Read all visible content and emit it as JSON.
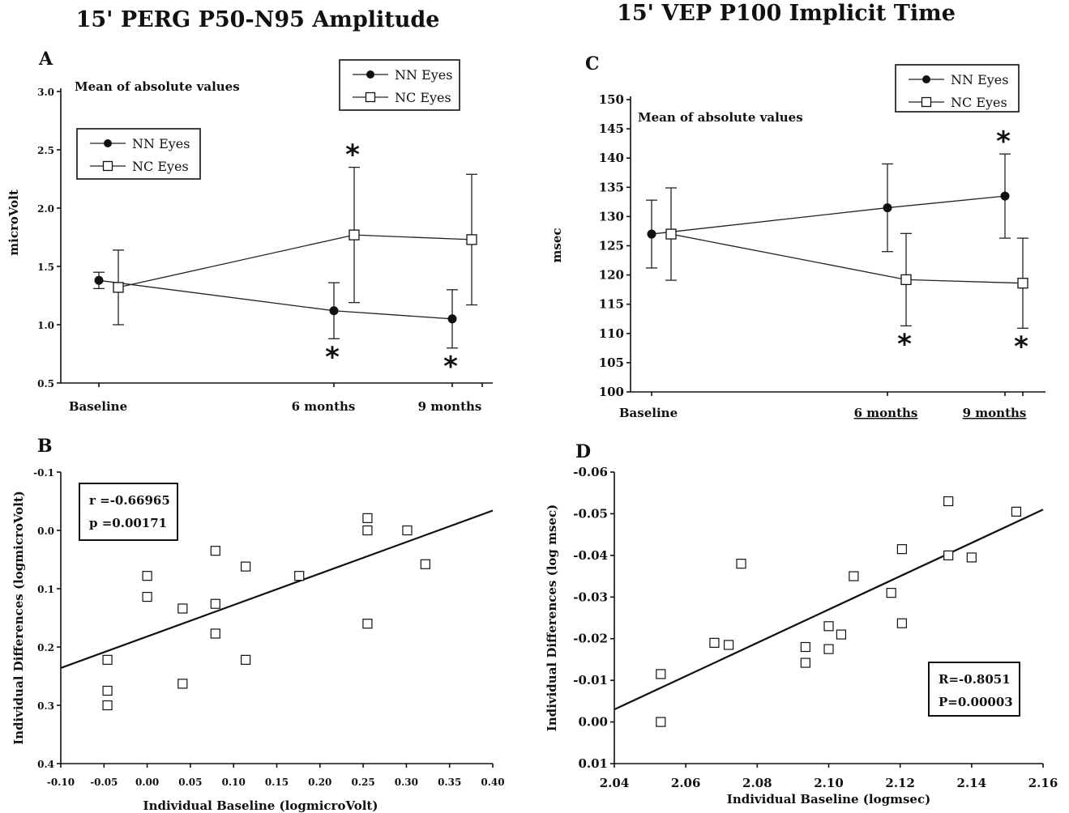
{
  "titles": {
    "left": "15' PERG P50-N95 Amplitude",
    "right": "15' VEP P100 Implicit Time"
  },
  "chart_data": [
    {
      "panel": "A",
      "type": "line",
      "note": "Mean of absolute values",
      "ylabel": "microVolt",
      "xlabel": "",
      "ylim": [
        0.5,
        3.0
      ],
      "yticks": [
        "0.5",
        "1.0",
        "1.5",
        "2.0",
        "2.5",
        "3.0"
      ],
      "categories": [
        "Baseline",
        "6 months",
        "9 months"
      ],
      "legend": {
        "placement": "top-right and upper-left (duplicated)",
        "entries": [
          "NN Eyes",
          "NC Eyes"
        ]
      },
      "series": [
        {
          "name": "NN Eyes",
          "marker": "filled-circle",
          "values": [
            1.38,
            1.12,
            1.05
          ],
          "error": [
            0.07,
            0.24,
            0.25
          ],
          "significant": [
            false,
            true,
            true
          ],
          "star_position": "below"
        },
        {
          "name": "NC Eyes",
          "marker": "open-square",
          "values": [
            1.32,
            1.77,
            1.73
          ],
          "error": [
            0.32,
            0.58,
            0.56
          ],
          "significant": [
            false,
            true,
            false
          ],
          "star_position": "above"
        }
      ]
    },
    {
      "panel": "B",
      "type": "scatter",
      "xlabel": "Individual Baseline  (logmicroVolt)",
      "ylabel": "Individual Differences (logmicroVolt)",
      "xlim": [
        -0.1,
        0.4
      ],
      "ylim": [
        0.4,
        -0.1
      ],
      "xticks": [
        "-0.10",
        "-0.05",
        "0.00",
        "0.05",
        "0.10",
        "0.15",
        "0.20",
        "0.25",
        "0.30",
        "0.35",
        "0.40"
      ],
      "yticks": [
        "-0.1",
        "0.0",
        "0.1",
        "0.2",
        "0.3",
        "0.4"
      ],
      "stats": {
        "r": "r =-0.66965",
        "p": "p =0.00171"
      },
      "points": [
        [
          -0.046,
          0.222
        ],
        [
          -0.046,
          0.275
        ],
        [
          -0.046,
          0.3
        ],
        [
          0.0,
          0.078
        ],
        [
          0.0,
          0.114
        ],
        [
          0.041,
          0.134
        ],
        [
          0.041,
          0.263
        ],
        [
          0.079,
          0.035
        ],
        [
          0.079,
          0.126
        ],
        [
          0.079,
          0.177
        ],
        [
          0.114,
          0.062
        ],
        [
          0.114,
          0.222
        ],
        [
          0.176,
          0.078
        ],
        [
          0.255,
          -0.021
        ],
        [
          0.255,
          0.0
        ],
        [
          0.255,
          0.16
        ],
        [
          0.301,
          0.0
        ],
        [
          0.322,
          0.058
        ]
      ],
      "fit_line": [
        [
          -0.1,
          0.236
        ],
        [
          0.4,
          -0.034
        ]
      ]
    },
    {
      "panel": "C",
      "type": "line",
      "note": "Mean of absolute values",
      "ylabel": "msec",
      "xlabel": "",
      "ylim": [
        100,
        150
      ],
      "yticks": [
        "100",
        "105",
        "110",
        "115",
        "120",
        "125",
        "130",
        "135",
        "140",
        "145",
        "150"
      ],
      "categories": [
        "Baseline",
        "6 months",
        "9 months"
      ],
      "legend": {
        "placement": "top-right",
        "entries": [
          "NN Eyes",
          "NC Eyes"
        ]
      },
      "series": [
        {
          "name": "NN Eyes",
          "marker": "filled-circle",
          "values": [
            127.0,
            131.5,
            133.5
          ],
          "error": [
            5.8,
            7.5,
            7.2
          ],
          "significant": [
            false,
            false,
            true
          ],
          "star_position": "above"
        },
        {
          "name": "NC Eyes",
          "marker": "open-square",
          "values": [
            127.0,
            119.2,
            118.6
          ],
          "error": [
            7.9,
            7.9,
            7.7
          ],
          "significant": [
            false,
            true,
            true
          ],
          "star_position": "below"
        }
      ]
    },
    {
      "panel": "D",
      "type": "scatter",
      "xlabel": "Individual Baseline (logmsec)",
      "ylabel": "Individual Differences (log msec)",
      "xlim": [
        2.04,
        2.16
      ],
      "ylim": [
        0.01,
        -0.06
      ],
      "xticks": [
        "2.04",
        "2.06",
        "2.08",
        "2.10",
        "2.12",
        "2.14",
        "2.16"
      ],
      "yticks": [
        "-0.06",
        "-0.05",
        "-0.04",
        "-0.03",
        "-0.02",
        "-0.01",
        "0.00",
        "0.01"
      ],
      "stats": {
        "r": "R=-0.8051",
        "p": "P=0.00003"
      },
      "points": [
        [
          2.053,
          -0.0115
        ],
        [
          2.053,
          0.0
        ],
        [
          2.068,
          -0.019
        ],
        [
          2.072,
          -0.0185
        ],
        [
          2.0755,
          -0.038
        ],
        [
          2.0935,
          -0.018
        ],
        [
          2.0935,
          -0.0142
        ],
        [
          2.1,
          -0.023
        ],
        [
          2.1,
          -0.0175
        ],
        [
          2.1035,
          -0.021
        ],
        [
          2.107,
          -0.035
        ],
        [
          2.1175,
          -0.031
        ],
        [
          2.1205,
          -0.0415
        ],
        [
          2.1205,
          -0.0237
        ],
        [
          2.1335,
          -0.053
        ],
        [
          2.1335,
          -0.04
        ],
        [
          2.14,
          -0.0395
        ],
        [
          2.1525,
          -0.0505
        ]
      ],
      "fit_line": [
        [
          2.04,
          -0.003
        ],
        [
          2.16,
          -0.051
        ]
      ]
    }
  ]
}
